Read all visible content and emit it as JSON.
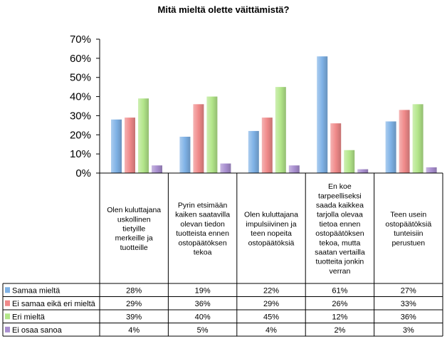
{
  "chart_data": {
    "type": "bar",
    "title": "Mitä mieltä olette väittämistä?",
    "ylim": [
      0,
      70
    ],
    "yticks": [
      "0%",
      "10%",
      "20%",
      "30%",
      "40%",
      "50%",
      "60%",
      "70%"
    ],
    "grid": false,
    "legend": "data-table-left",
    "categories": [
      [
        "Olen kuluttajana",
        "uskollinen",
        "tietyille",
        "merkeille ja",
        "tuotteille"
      ],
      [
        "Pyrin etsimään",
        "kaiken saatavilla",
        "olevan tiedon",
        "tuotteista ennen",
        "ostopäätöksen",
        "tekoa"
      ],
      [
        "Olen kuluttajana",
        "impulsiivinen ja",
        "teen nopeita",
        "ostopäätöksiä"
      ],
      [
        "En koe",
        "tarpeelliseksi",
        "saada kaikkea",
        "tarjolla olevaa",
        "tietoa ennen",
        "ostopäätöksen",
        "tekoa, mutta",
        "saatan vertailla",
        "tuotteita jonkin",
        "verran"
      ],
      [
        "Teen usein",
        "ostopäätöksiä",
        "tunteisiin",
        "perustuen"
      ]
    ],
    "series": [
      {
        "name": "Samaa mieltä",
        "color": "#7fb2e6",
        "values": [
          28,
          19,
          22,
          61,
          27
        ],
        "labels": [
          "28%",
          "19%",
          "22%",
          "61%",
          "27%"
        ]
      },
      {
        "name": "Ei samaa eikä eri mieltä",
        "color": "#f08a8a",
        "values": [
          29,
          36,
          29,
          26,
          33
        ],
        "labels": [
          "29%",
          "36%",
          "29%",
          "26%",
          "33%"
        ]
      },
      {
        "name": "Eri mieltä",
        "color": "#b3e68a",
        "values": [
          39,
          40,
          45,
          12,
          36
        ],
        "labels": [
          "39%",
          "40%",
          "45%",
          "12%",
          "36%"
        ]
      },
      {
        "name": "Ei osaa sanoa",
        "color": "#a98fd0",
        "values": [
          4,
          5,
          4,
          2,
          3
        ],
        "labels": [
          "4%",
          "5%",
          "4%",
          "2%",
          "3%"
        ]
      }
    ]
  }
}
